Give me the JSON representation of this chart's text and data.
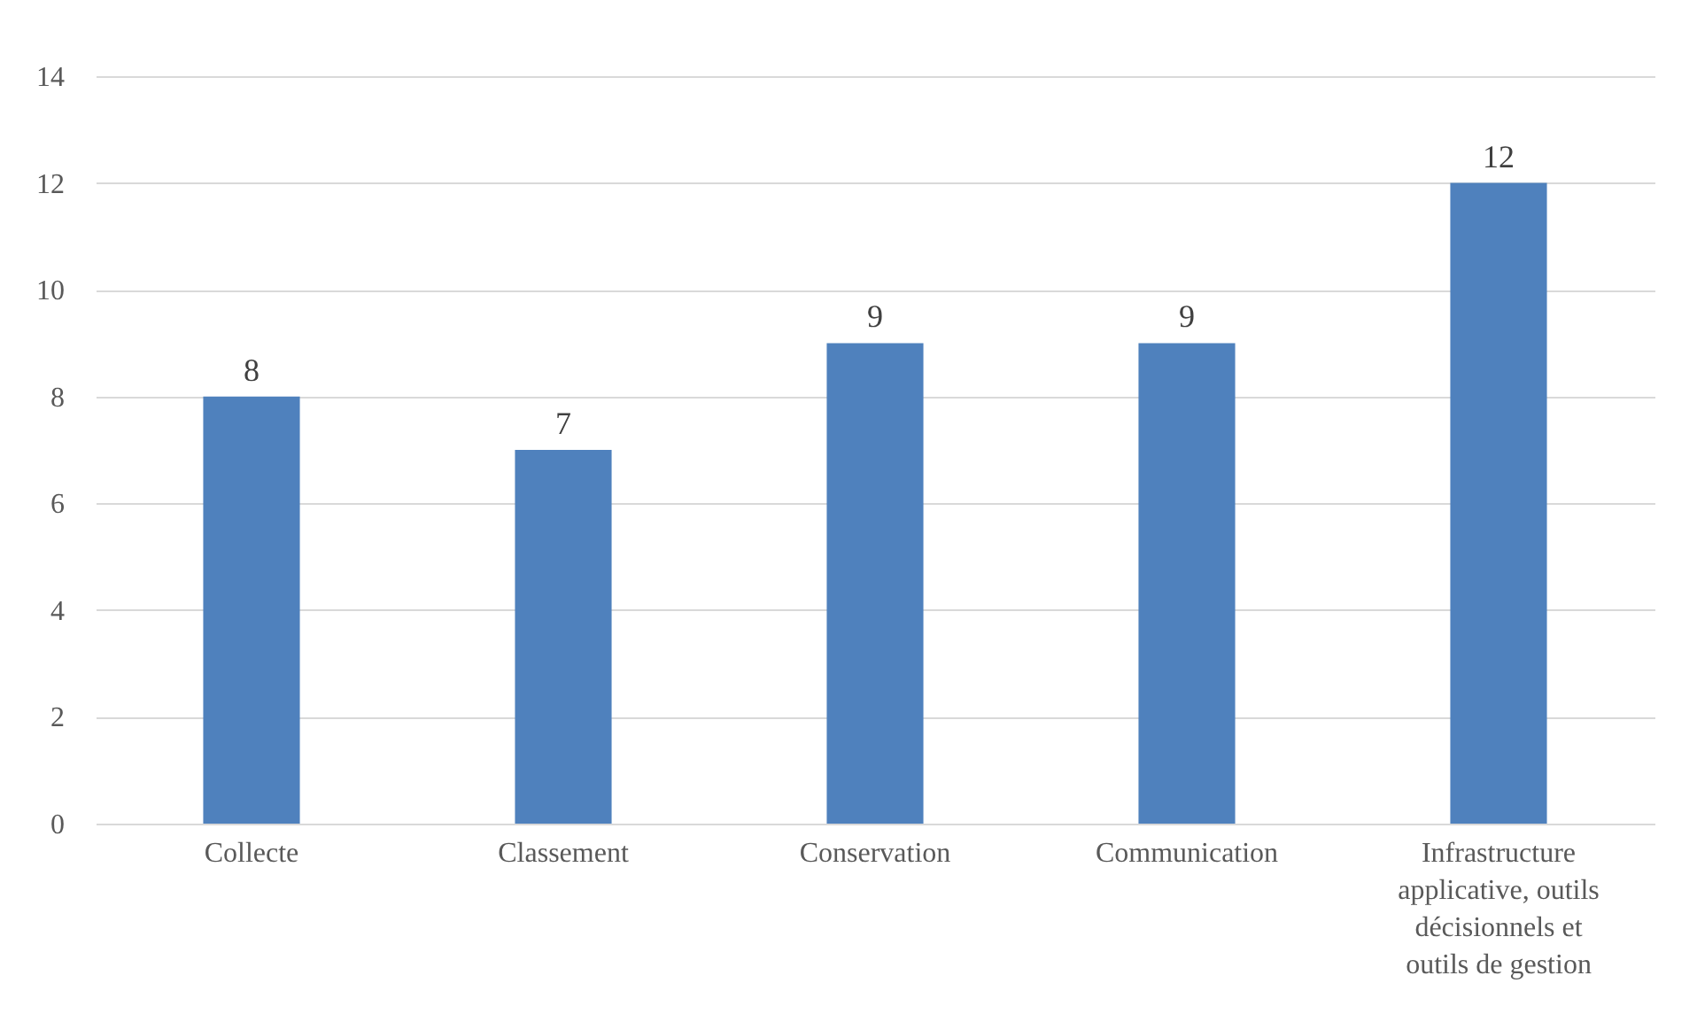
{
  "chart_data": {
    "type": "bar",
    "categories": [
      "Collecte",
      "Classement",
      "Conservation",
      "Communication",
      "Infrastructure applicative, outils décisionnels et outils de gestion"
    ],
    "values": [
      8,
      7,
      9,
      9,
      12
    ],
    "color": "#4f81bd",
    "ylim": [
      0,
      14
    ],
    "yticks": [
      0,
      2,
      4,
      6,
      8,
      10,
      12,
      14
    ],
    "grid": "y",
    "data_labels": true
  }
}
